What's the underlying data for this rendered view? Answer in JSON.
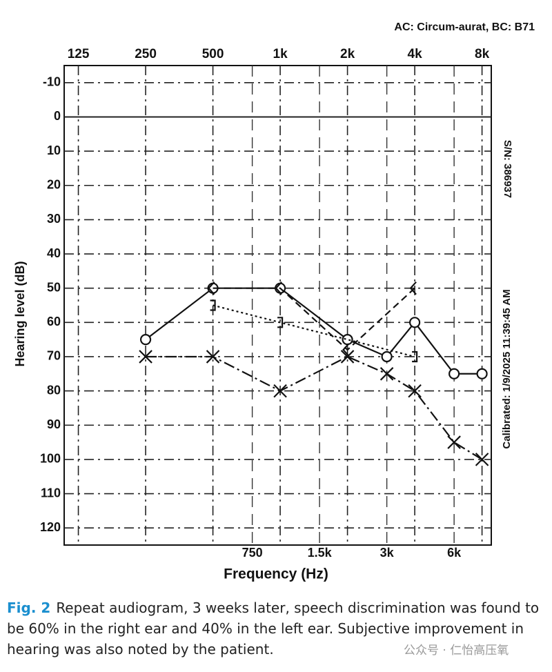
{
  "chart_data": {
    "type": "line",
    "title": "AC: Circum-aurat, BC: B71",
    "xlabel": "Frequency (Hz)",
    "ylabel": "Hearing level (dB)",
    "annotations": [
      "S/N: 386937",
      "Calibrated: 1/9/2025 11:39:45 AM"
    ],
    "xscale": "log",
    "xlim": [
      108,
      8800
    ],
    "ylim": [
      -15,
      125
    ],
    "y_inverted": true,
    "grid": true,
    "xticks": [
      125,
      250,
      500,
      {
        "value": 1000,
        "label": "1k"
      },
      {
        "value": 2000,
        "label": "2k"
      },
      {
        "value": 4000,
        "label": "4k"
      },
      {
        "value": 8000,
        "label": "8k"
      }
    ],
    "xticks_minor": [
      750,
      {
        "value": 1500,
        "label": "1.5k"
      },
      {
        "value": 3000,
        "label": "3k"
      },
      {
        "value": 6000,
        "label": "6k"
      }
    ],
    "yticks": [
      -10,
      0,
      10,
      20,
      30,
      40,
      50,
      60,
      70,
      80,
      90,
      100,
      110,
      120
    ],
    "series": [
      {
        "marker": "o",
        "color": "#111",
        "linestyle": "solid",
        "x": [
          250,
          500,
          1000,
          2000,
          3000,
          4000,
          6000,
          8000
        ],
        "values": [
          65,
          50,
          50,
          65,
          70,
          60,
          75,
          75
        ]
      },
      {
        "marker": "x",
        "color": "#111",
        "linestyle": "dashdot",
        "x": [
          250,
          500,
          1000,
          2000,
          3000,
          4000,
          6000,
          8000
        ],
        "values": [
          70,
          70,
          80,
          70,
          75,
          80,
          95,
          100
        ]
      },
      {
        "marker": "<",
        "color": "#111",
        "linestyle": "dashed",
        "x": [
          500,
          1000,
          2000,
          4000
        ],
        "values": [
          50,
          50,
          68,
          50
        ]
      },
      {
        "marker": "]",
        "color": "#111",
        "linestyle": "dotted",
        "x": [
          500,
          1000,
          4000
        ],
        "values": [
          55,
          60,
          70
        ]
      }
    ]
  },
  "caption": {
    "label": "Fig. 2",
    "text": "Repeat audiogram, 3 weeks later, speech discrimination was found to be 60% in the right ear and 40% in the left ear. Subjective improvement in hearing was also noted by the patient."
  },
  "watermark": "公众号 · 仁怡高压氧"
}
